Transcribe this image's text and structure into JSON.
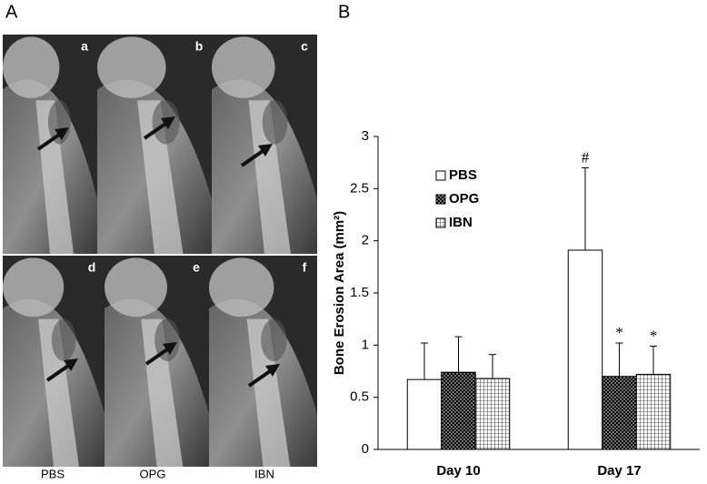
{
  "panel_a": {
    "label": "A",
    "images": [
      "a",
      "b",
      "c",
      "d",
      "e",
      "f"
    ],
    "groups": [
      "PBS",
      "OPG",
      "IBN"
    ]
  },
  "chart_data": {
    "type": "bar",
    "panel_label": "B",
    "y_label": "Bone Erosion Area (mm²)",
    "categories": [
      "Day 10",
      "Day 17"
    ],
    "series": [
      {
        "name": "PBS",
        "color": "#ffffff",
        "pattern": "none",
        "values": [
          0.67,
          1.91
        ],
        "errors": [
          0.35,
          0.79
        ]
      },
      {
        "name": "OPG",
        "color": "#000000",
        "pattern": "dots",
        "values": [
          0.74,
          0.7
        ],
        "errors": [
          0.34,
          0.32
        ]
      },
      {
        "name": "IBN",
        "color": "#ffffff",
        "pattern": "grid",
        "values": [
          0.68,
          0.72
        ],
        "errors": [
          0.23,
          0.27
        ]
      }
    ],
    "annotations": [
      {
        "text": "#",
        "series": "PBS",
        "category": "Day 17"
      },
      {
        "text": "*",
        "series": "OPG",
        "category": "Day 17"
      },
      {
        "text": "*",
        "series": "IBN",
        "category": "Day 17"
      }
    ],
    "ylim": [
      0,
      3
    ],
    "yticks": [
      0,
      0.5,
      1,
      1.5,
      2,
      2.5,
      3
    ],
    "grid": false,
    "legend": "top-left"
  }
}
